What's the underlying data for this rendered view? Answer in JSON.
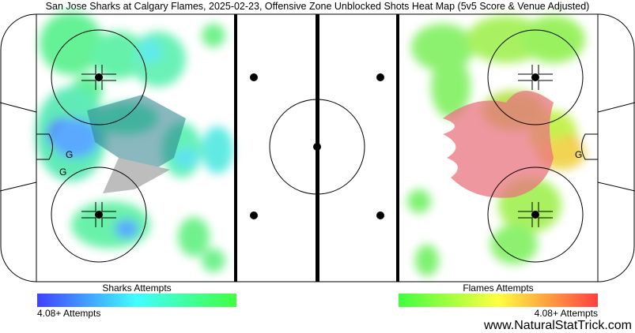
{
  "title": "San Jose Sharks at Calgary Flames, 2025-02-23, Offensive Zone Unblocked Shots Heat Map (5v5 Score & Venue Adjusted)",
  "left_team": {
    "legend_label": "Sharks Attempts",
    "scale_label": "4.08+ Attempts",
    "gradient": [
      "#4040ff",
      "#40ffff",
      "#40ff40"
    ],
    "goal_markers": [
      "G",
      "G"
    ]
  },
  "right_team": {
    "legend_label": "Flames Attempts",
    "scale_label": "4.08+ Attempts",
    "gradient": [
      "#40ff40",
      "#ffff40",
      "#ff4040"
    ],
    "goal_markers": [
      "G"
    ]
  },
  "watermark": "www.NaturalStatTrick.com",
  "colors": {
    "blue_line": "#000000",
    "rink_line": "#000000"
  }
}
